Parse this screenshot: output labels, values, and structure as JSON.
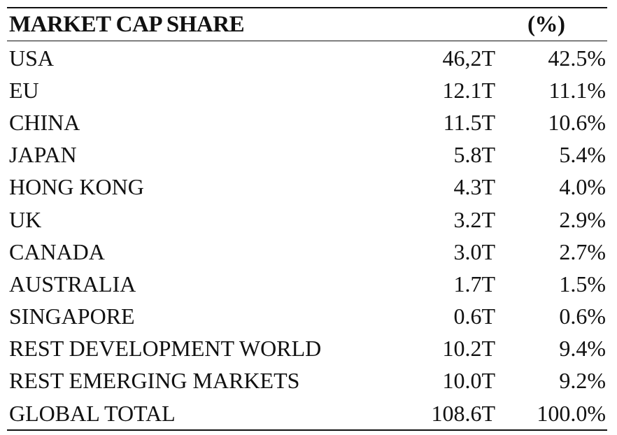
{
  "chart_data": {
    "type": "table",
    "columns": [
      "MARKET CAP SHARE",
      "",
      "(%)"
    ],
    "rows": [
      {
        "label": "USA",
        "value": "46,2T",
        "pct": "42.5%"
      },
      {
        "label": "EU",
        "value": "12.1T",
        "pct": "11.1%"
      },
      {
        "label": "CHINA",
        "value": "11.5T",
        "pct": "10.6%"
      },
      {
        "label": "JAPAN",
        "value": "5.8T",
        "pct": "5.4%"
      },
      {
        "label": "HONG KONG",
        "value": "4.3T",
        "pct": "4.0%"
      },
      {
        "label": "UK",
        "value": "3.2T",
        "pct": "2.9%"
      },
      {
        "label": "CANADA",
        "value": "3.0T",
        "pct": "2.7%"
      },
      {
        "label": "AUSTRALIA",
        "value": "1.7T",
        "pct": "1.5%"
      },
      {
        "label": "SINGAPORE",
        "value": "0.6T",
        "pct": "0.6%"
      },
      {
        "label": "REST DEVELOPMENT WORLD",
        "value": "10.2T",
        "pct": "9.4%"
      },
      {
        "label": "REST EMERGING MARKETS",
        "value": "10.0T",
        "pct": "9.2%"
      },
      {
        "label": "GLOBAL TOTAL",
        "value": "108.6T",
        "pct": "100.0%"
      }
    ]
  }
}
